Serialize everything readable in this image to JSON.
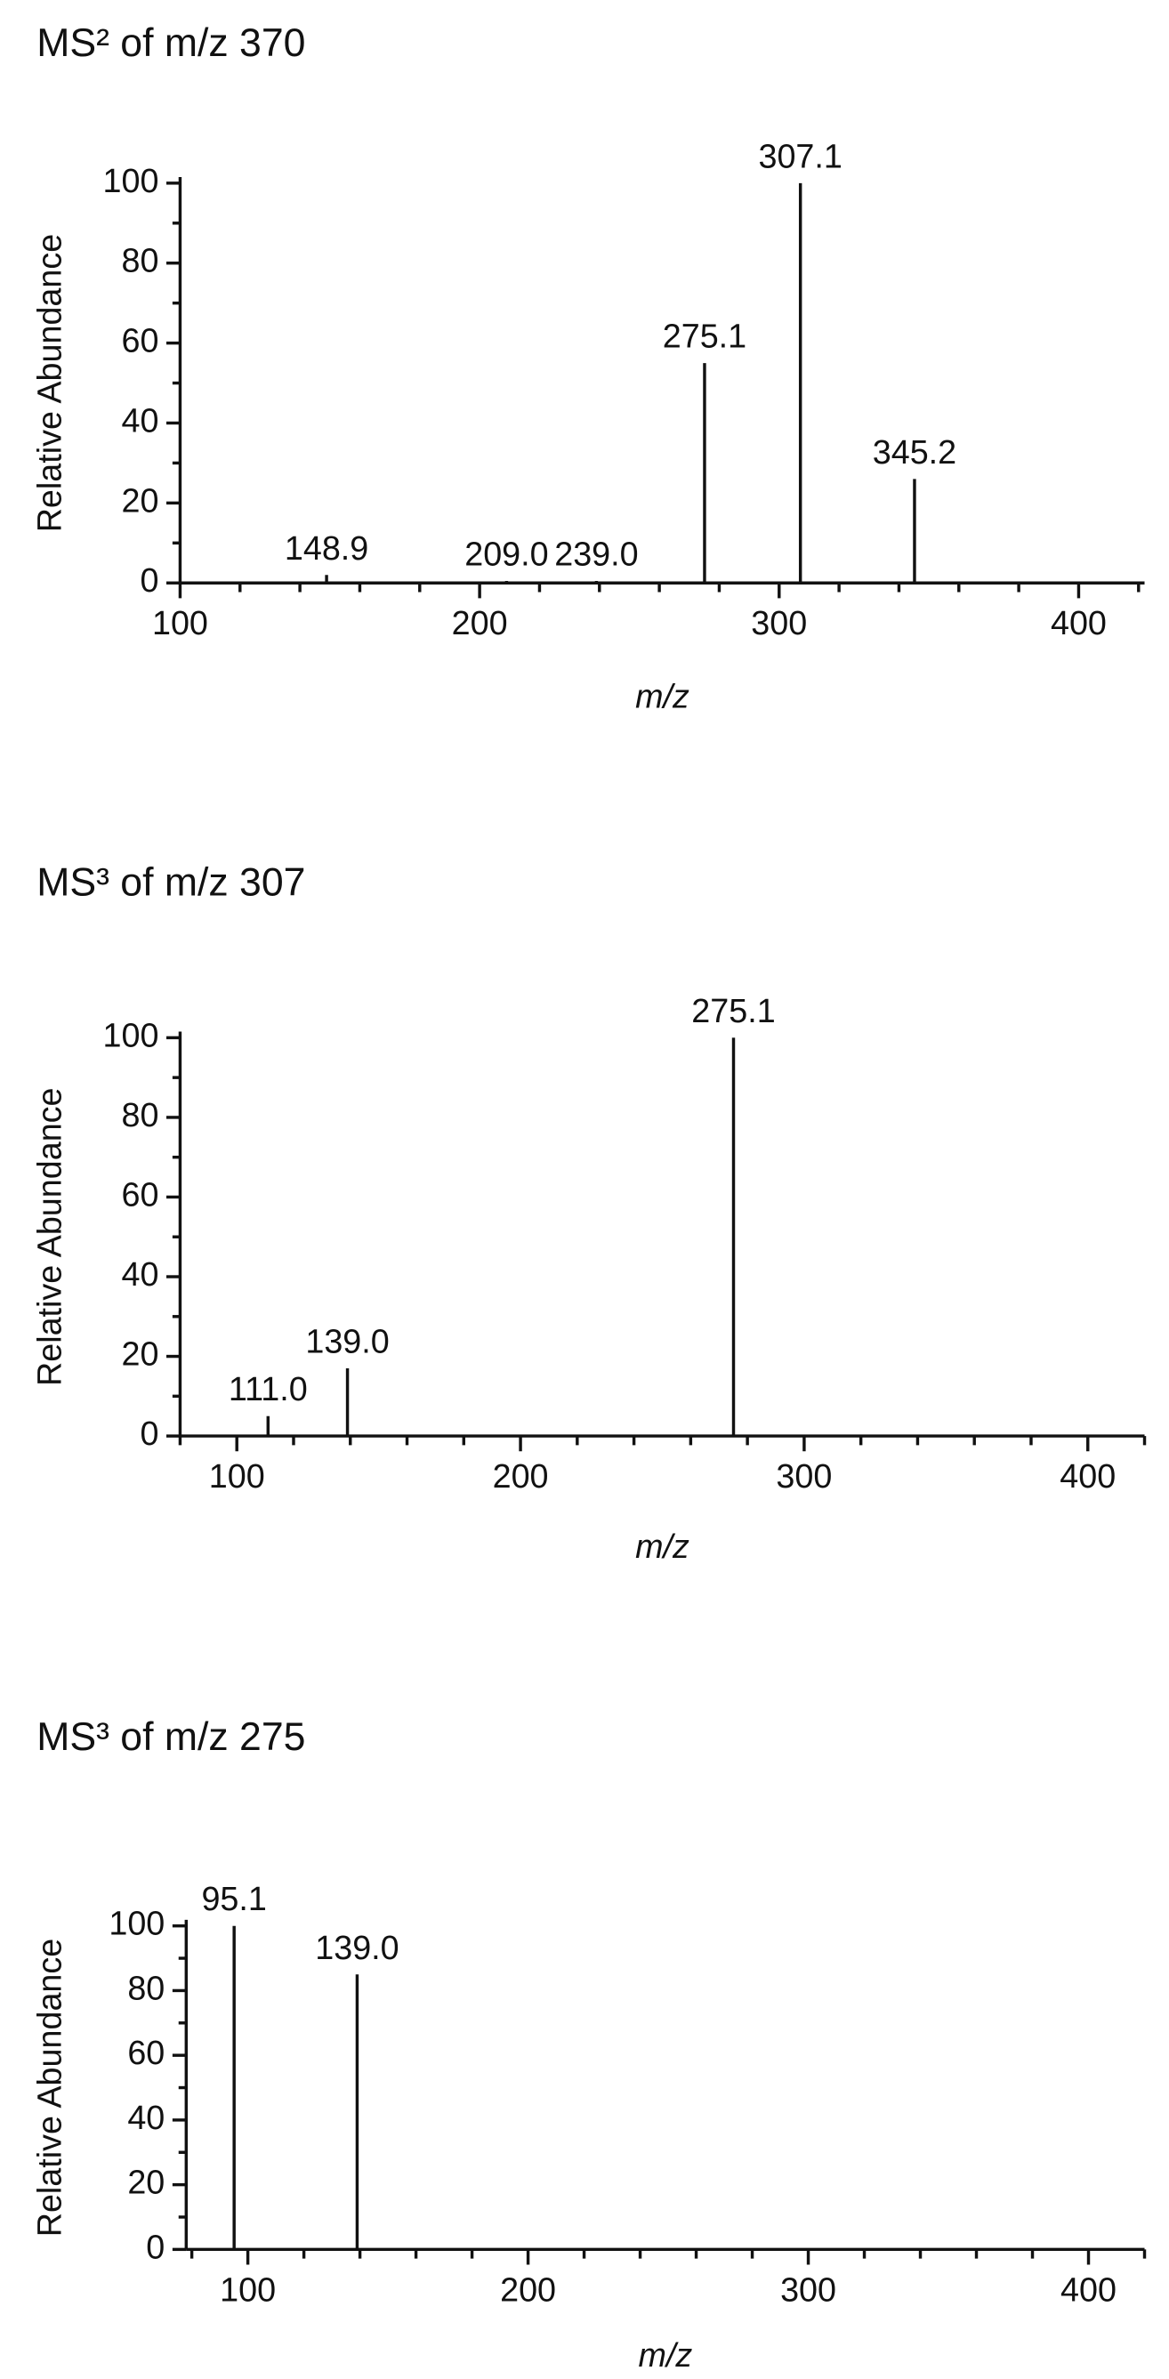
{
  "chart_data": [
    {
      "type": "stem",
      "title": "MS² of m/z 370",
      "x_label": "m/z",
      "y_label": "Relative Abundance",
      "x": [
        148.9,
        209.0,
        239.0,
        275.1,
        307.1,
        345.2
      ],
      "x_labels": [
        "148.9",
        "209.0",
        "239.0",
        "275.1",
        "307.1",
        "345.2"
      ],
      "values": [
        2,
        0.5,
        0.5,
        55,
        100,
        26
      ],
      "color": "#111111",
      "xlim": [
        100,
        422
      ],
      "xticks": [
        100,
        200,
        300,
        400
      ],
      "xminorticks": [
        120,
        140,
        160,
        180,
        220,
        240,
        260,
        280,
        320,
        340,
        360,
        380,
        420
      ],
      "ylim": [
        0,
        100
      ],
      "yticks": [
        0,
        20,
        40,
        60,
        80,
        100
      ],
      "yminorticks": [
        10,
        30,
        50,
        70,
        90
      ]
    },
    {
      "type": "stem",
      "title": "MS³ of m/z 307",
      "x_label": "m/z",
      "y_label": "Relative Abundance",
      "x": [
        111.0,
        139.0,
        275.1
      ],
      "x_labels": [
        "111.0",
        "139.0",
        "275.1"
      ],
      "values": [
        5,
        17,
        100
      ],
      "color": "#111111",
      "xlim": [
        80,
        420
      ],
      "xticks": [
        100,
        200,
        300,
        400
      ],
      "xminorticks": [
        80,
        120,
        140,
        160,
        180,
        220,
        240,
        260,
        280,
        320,
        340,
        360,
        380,
        420
      ],
      "ylim": [
        0,
        100
      ],
      "yticks": [
        0,
        20,
        40,
        60,
        80,
        100
      ],
      "yminorticks": [
        10,
        30,
        50,
        70,
        90
      ]
    },
    {
      "type": "stem",
      "title": "MS³ of m/z 275",
      "x_label": "m/z",
      "y_label": "Relative Abundance",
      "x": [
        95.1,
        139.0
      ],
      "x_labels": [
        "95.1",
        "139.0"
      ],
      "values": [
        100,
        85
      ],
      "color": "#111111",
      "xlim": [
        78,
        420
      ],
      "xticks": [
        100,
        200,
        300,
        400
      ],
      "xminorticks": [
        80,
        120,
        140,
        160,
        180,
        220,
        240,
        260,
        280,
        320,
        340,
        360,
        380,
        420
      ],
      "ylim": [
        0,
        100
      ],
      "yticks": [
        0,
        20,
        40,
        60,
        80,
        100
      ],
      "yminorticks": [
        10,
        30,
        50,
        70,
        90
      ]
    }
  ]
}
